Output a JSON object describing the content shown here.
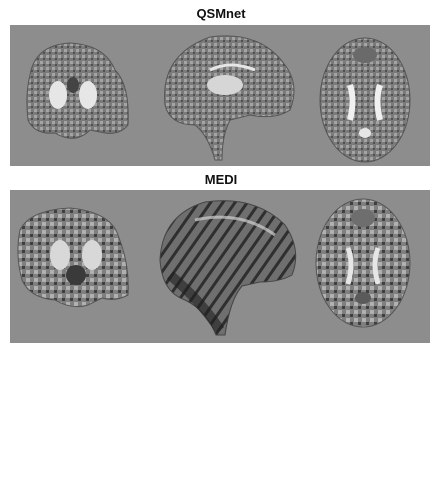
{
  "figure": {
    "panels": [
      {
        "title": "QSMnet",
        "views": [
          "coronal",
          "sagittal",
          "axial"
        ]
      },
      {
        "title": "MEDI",
        "views": [
          "coronal",
          "sagittal",
          "axial"
        ]
      }
    ],
    "colors": {
      "background": "#8d8d8d",
      "tissue_dark": "#3a3a3a",
      "tissue_light": "#e6e6e6"
    }
  }
}
